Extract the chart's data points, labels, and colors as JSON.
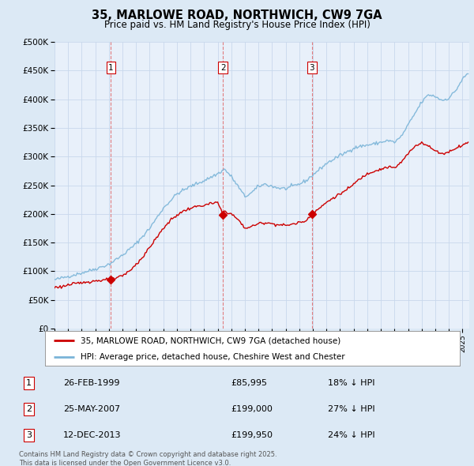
{
  "title": "35, MARLOWE ROAD, NORTHWICH, CW9 7GA",
  "subtitle": "Price paid vs. HM Land Registry's House Price Index (HPI)",
  "legend_line1": "35, MARLOWE ROAD, NORTHWICH, CW9 7GA (detached house)",
  "legend_line2": "HPI: Average price, detached house, Cheshire West and Chester",
  "footer": "Contains HM Land Registry data © Crown copyright and database right 2025.\nThis data is licensed under the Open Government Licence v3.0.",
  "transactions": [
    {
      "num": 1,
      "date": "26-FEB-1999",
      "price": "£85,995",
      "hpi": "18% ↓ HPI",
      "year": 1999.15,
      "value": 85995
    },
    {
      "num": 2,
      "date": "25-MAY-2007",
      "price": "£199,000",
      "hpi": "27% ↓ HPI",
      "year": 2007.38,
      "value": 199000
    },
    {
      "num": 3,
      "date": "12-DEC-2013",
      "price": "£199,950",
      "hpi": "24% ↓ HPI",
      "year": 2013.92,
      "value": 199950
    }
  ],
  "ylim": [
    0,
    500000
  ],
  "xlim": [
    1995.0,
    2025.5
  ],
  "yticks": [
    0,
    50000,
    100000,
    150000,
    200000,
    250000,
    300000,
    350000,
    400000,
    450000,
    500000
  ],
  "hpi_color": "#7ab4d8",
  "paid_color": "#cc0000",
  "vline_color": "#e06060",
  "bg_color": "#dce9f5",
  "plot_bg": "#e8f0fa",
  "marker_box_color": "#cc0000",
  "grid_color": "#c8d8ec"
}
